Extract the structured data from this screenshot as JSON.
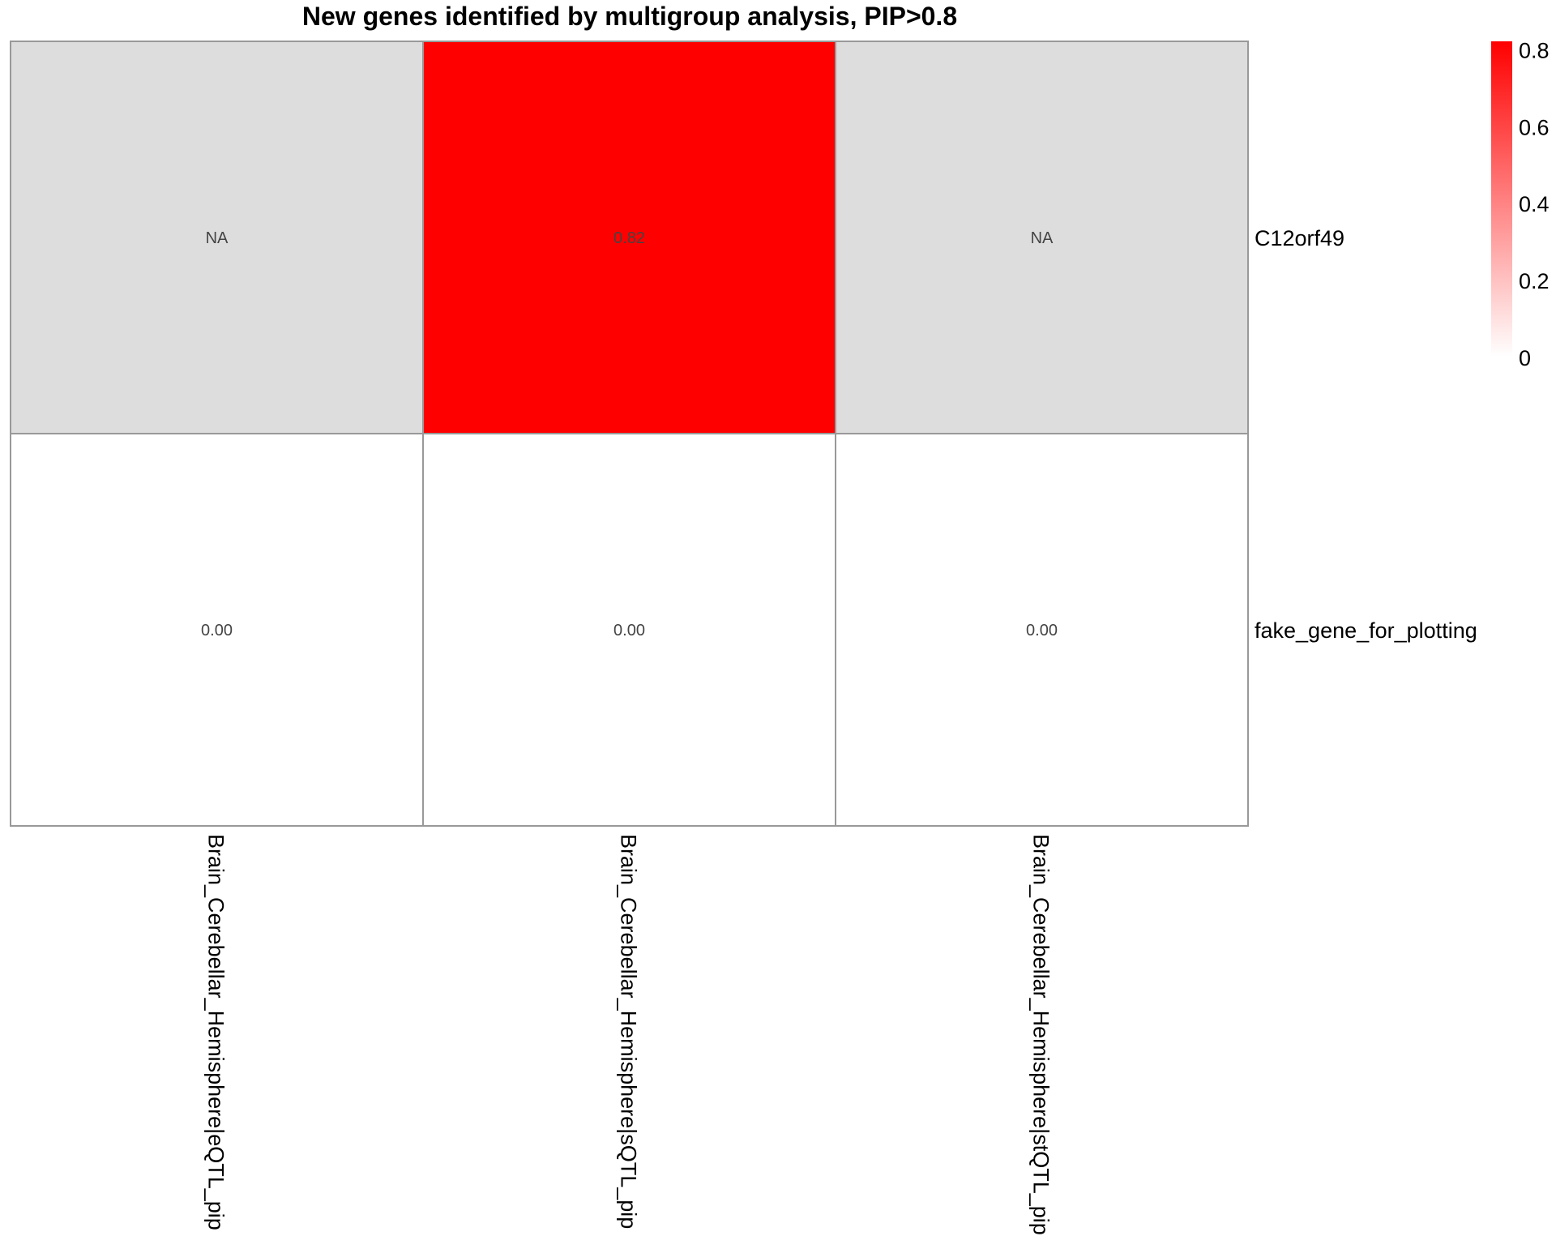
{
  "chart_data": {
    "type": "heatmap",
    "title": "New genes identified by multigroup analysis, PIP>0.8",
    "rows": [
      "C12orf49",
      "fake_gene_for_plotting"
    ],
    "columns": [
      "Brain_Cerebellar_Hemisphere|eQTL_pip",
      "Brain_Cerebellar_Hemisphere|sQTL_pip",
      "Brain_Cerebellar_Hemisphere|stQTL_pip"
    ],
    "values": [
      [
        null,
        0.82,
        null
      ],
      [
        0.0,
        0.0,
        0.0
      ]
    ],
    "cell_labels": [
      [
        "NA",
        "0.82",
        "NA"
      ],
      [
        "0.00",
        "0.00",
        "0.00"
      ]
    ],
    "legend": {
      "ticks": [
        "0",
        "0.2",
        "0.4",
        "0.6",
        "0.8"
      ],
      "min": 0,
      "max": 0.82,
      "placement": "top-right"
    },
    "colors": {
      "low": "#ffffff",
      "high": "#ff0000",
      "na": "#dddddd",
      "border": "#999999"
    }
  }
}
